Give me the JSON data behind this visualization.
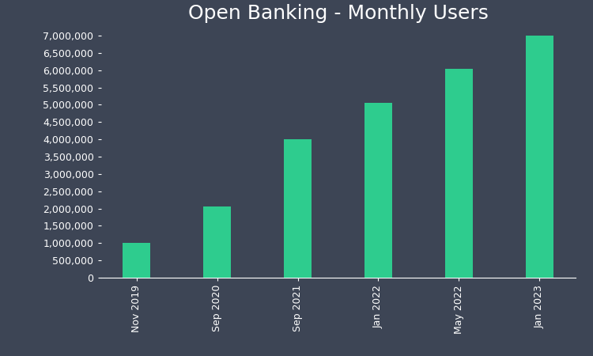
{
  "title": "Open Banking - Monthly Users",
  "categories": [
    "Nov 2019",
    "Sep 2020",
    "Sep 2021",
    "Jan 2022",
    "May 2022",
    "Jan 2023"
  ],
  "values": [
    1000000,
    2050000,
    4000000,
    5050000,
    6050000,
    7000000
  ],
  "bar_color": "#2ecc8e",
  "background_color": "#3d4555",
  "text_color": "#ffffff",
  "ylim": [
    0,
    7000000
  ],
  "ytick_step": 500000,
  "title_fontsize": 18,
  "tick_fontsize": 9,
  "bar_width": 0.35
}
